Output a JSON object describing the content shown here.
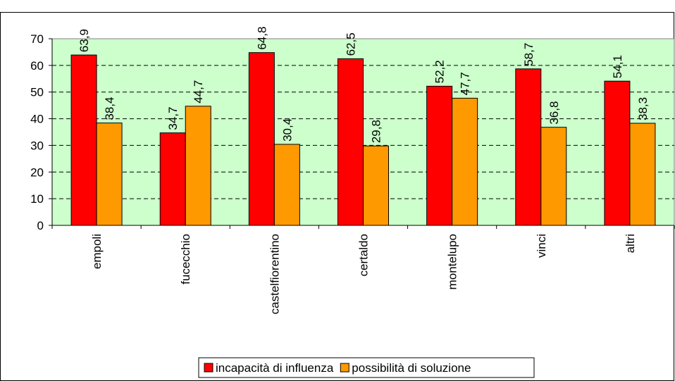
{
  "chart_data": {
    "type": "bar",
    "categories": [
      "empoli",
      "fucecchio",
      "castelfiorentino",
      "certaldo",
      "montelupo",
      "vinci",
      "altri"
    ],
    "series": [
      {
        "name": "incapacità di influenza",
        "color": "#ff0000",
        "values": [
          63.9,
          34.7,
          64.8,
          62.5,
          52.2,
          58.7,
          54.1
        ],
        "value_labels": [
          "63,9",
          "34,7",
          "64,8",
          "62,5",
          "52,2",
          "58,7",
          "54,1"
        ]
      },
      {
        "name": "possibilità di soluzione",
        "color": "#ff9900",
        "values": [
          38.4,
          44.7,
          30.4,
          29.8,
          47.7,
          36.8,
          38.3
        ],
        "value_labels": [
          "38,4",
          "44,7",
          "30,4",
          "29,8",
          "47,7",
          "36,8",
          "38,3"
        ]
      }
    ],
    "ylim": [
      0,
      70
    ],
    "yticks": [
      0,
      10,
      20,
      30,
      40,
      50,
      60,
      70
    ],
    "grid": true,
    "legend": "bottom"
  }
}
